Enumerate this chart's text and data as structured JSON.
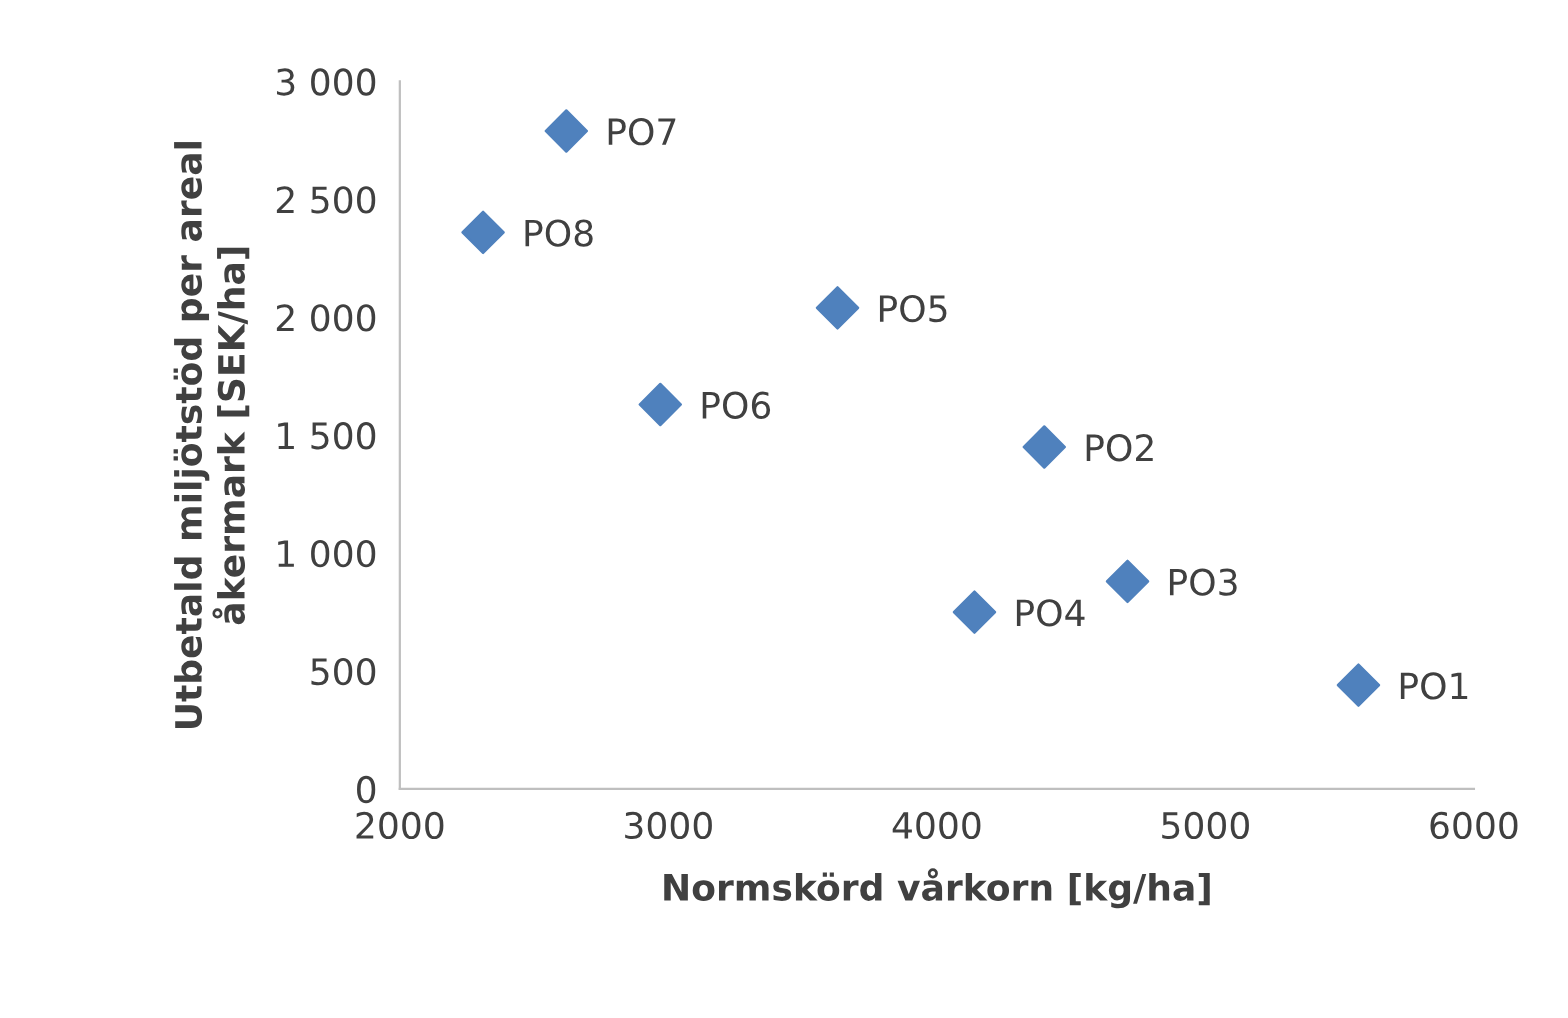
{
  "chart_data": {
    "type": "scatter",
    "xlabel": "Normskörd vårkorn [kg/ha]",
    "ylabel": "Utbetald miljötstöd per areal\nåkermark [SEK/ha]",
    "series": [
      {
        "color": "#4f81bd",
        "x": [
          5570,
          4400,
          4710,
          4140,
          3630,
          2970,
          2620,
          2310
        ],
        "values": [
          440,
          1450,
          880,
          750,
          2040,
          1630,
          2790,
          2360
        ]
      }
    ],
    "annotations": [
      {
        "text": "PO1",
        "x": 5570,
        "y": 440
      },
      {
        "text": "PO2",
        "x": 4400,
        "y": 1450
      },
      {
        "text": "PO3",
        "x": 4710,
        "y": 880
      },
      {
        "text": "PO4",
        "x": 4140,
        "y": 750
      },
      {
        "text": "PO5",
        "x": 3630,
        "y": 2040
      },
      {
        "text": "PO6",
        "x": 2970,
        "y": 1630
      },
      {
        "text": "PO7",
        "x": 2620,
        "y": 2790
      },
      {
        "text": "PO8",
        "x": 2310,
        "y": 2360
      }
    ],
    "xlim": [
      2000,
      6000
    ],
    "xticks": [
      2000,
      3000,
      4000,
      5000,
      6000
    ],
    "ylim": [
      0,
      3000
    ],
    "yticks": [
      0,
      500,
      {
        "value": 1000,
        "label": "1 000"
      },
      {
        "value": 1500,
        "label": "1 500"
      },
      {
        "value": 2000,
        "label": "2 000"
      },
      {
        "value": 2500,
        "label": "2 500"
      },
      {
        "value": 3000,
        "label": "3 000"
      }
    ],
    "marker": "diamond",
    "grid": false,
    "legend": false
  }
}
